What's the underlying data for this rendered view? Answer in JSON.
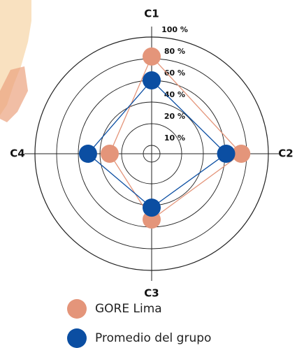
{
  "chart_data": {
    "type": "radar",
    "categories": [
      "C1",
      "C2",
      "C3",
      "C4"
    ],
    "rlim": [
      0,
      100
    ],
    "rticks": [
      {
        "value": 10,
        "label": "10 %"
      },
      {
        "value": 20,
        "label": "20 %"
      },
      {
        "value": 40,
        "label": "40 %"
      },
      {
        "value": 60,
        "label": "60 %"
      },
      {
        "value": 80,
        "label": "80 %"
      },
      {
        "value": 100,
        "label": "100 %"
      }
    ],
    "series": [
      {
        "name": "GORE Lima",
        "color": "#e4957a",
        "values": [
          82,
          75,
          53,
          31
        ]
      },
      {
        "name": "Promedio del grupo",
        "color": "#0b4ea2",
        "values": [
          60,
          61,
          42,
          51
        ]
      }
    ]
  }
}
